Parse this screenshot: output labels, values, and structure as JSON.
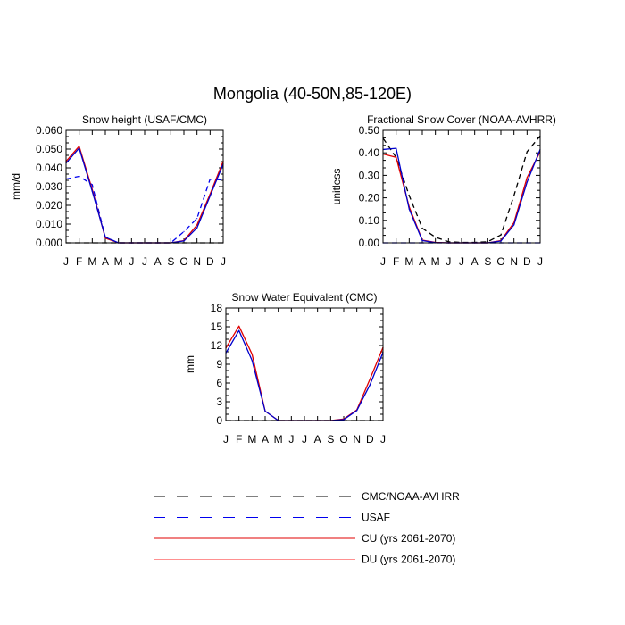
{
  "figure": {
    "title": "Mongolia (40-50N,85-120E)"
  },
  "colors": {
    "cmc_noaa": "#000000",
    "usaf": "#0000ee",
    "cu": "#e00000",
    "du": "#ff9090",
    "model_blue": "#0000cc"
  },
  "legend": [
    {
      "label": "CMC/NOAA-AVHRR",
      "style": "dashed",
      "color": "#000000"
    },
    {
      "label": "USAF",
      "style": "dashed",
      "color": "#0000ee"
    },
    {
      "label": "CU (yrs 2061-2070)",
      "style": "solid",
      "color": "#e00000"
    },
    {
      "label": "DU (yrs 2061-2070)",
      "style": "solid",
      "color": "#ff9090"
    }
  ],
  "chart_data": [
    {
      "type": "line",
      "title": "Snow height (USAF/CMC)",
      "ylabel": "mm/d",
      "xlabel": "",
      "categories": [
        "J",
        "F",
        "M",
        "A",
        "M",
        "J",
        "J",
        "A",
        "S",
        "O",
        "N",
        "D",
        "J"
      ],
      "ylim": [
        0,
        0.06
      ],
      "yticks": [
        "0.000",
        "0.010",
        "0.020",
        "0.030",
        "0.040",
        "0.050",
        "0.060"
      ],
      "series": [
        {
          "name": "CMC/NOAA-AVHRR",
          "style": "dashed",
          "color": "#000000",
          "values": [
            0,
            0,
            0,
            0,
            0,
            0,
            0,
            0,
            0,
            0,
            0,
            0,
            0
          ]
        },
        {
          "name": "USAF",
          "style": "dashed",
          "color": "#0000ee",
          "values": [
            0.034,
            0.0355,
            0.031,
            0.003,
            0,
            0,
            0,
            0,
            0,
            0.006,
            0.013,
            0.034,
            0.0335
          ]
        },
        {
          "name": "CU (yrs 2061-2070)",
          "style": "solid",
          "color": "#e00000",
          "values": [
            0.0435,
            0.0515,
            0.0285,
            0.0025,
            0,
            0,
            0,
            0,
            0,
            0.0012,
            0.0095,
            0.026,
            0.0435
          ]
        },
        {
          "name": "",
          "style": "solid",
          "color": "#0000cc",
          "values": [
            0.0425,
            0.0505,
            0.0275,
            0.003,
            0,
            0,
            0,
            0,
            0,
            0.001,
            0.008,
            0.025,
            0.042
          ]
        }
      ]
    },
    {
      "type": "line",
      "title": "Fractional Snow Cover (NOAA-AVHRR)",
      "ylabel": "unitless",
      "xlabel": "",
      "categories": [
        "J",
        "F",
        "M",
        "A",
        "M",
        "J",
        "J",
        "A",
        "S",
        "O",
        "N",
        "D",
        "J"
      ],
      "ylim": [
        0,
        0.5
      ],
      "yticks": [
        "0.00",
        "0.10",
        "0.20",
        "0.30",
        "0.40",
        "0.50"
      ],
      "series": [
        {
          "name": "CMC/NOAA-AVHRR",
          "style": "dashed",
          "color": "#000000",
          "values": [
            0.465,
            0.38,
            0.21,
            0.065,
            0.025,
            0.005,
            0.002,
            0.002,
            0.005,
            0.035,
            0.21,
            0.405,
            0.475
          ]
        },
        {
          "name": "USAF",
          "style": "dashed",
          "color": "#0000ee",
          "values": [
            0,
            0,
            0,
            0,
            0,
            0,
            0,
            0,
            0,
            0,
            0,
            0,
            0
          ]
        },
        {
          "name": "CU (yrs 2061-2070)",
          "style": "solid",
          "color": "#e00000",
          "values": [
            0.395,
            0.38,
            0.16,
            0.012,
            0.002,
            0,
            0,
            0,
            0,
            0.01,
            0.09,
            0.29,
            0.405
          ]
        },
        {
          "name": "",
          "style": "solid",
          "color": "#0000cc",
          "values": [
            0.415,
            0.42,
            0.15,
            0.01,
            0.001,
            0,
            0,
            0,
            0,
            0.008,
            0.08,
            0.27,
            0.415
          ]
        }
      ]
    },
    {
      "type": "line",
      "title": "Snow Water Equivalent (CMC)",
      "ylabel": "mm",
      "xlabel": "",
      "categories": [
        "J",
        "F",
        "M",
        "A",
        "M",
        "J",
        "J",
        "A",
        "S",
        "O",
        "N",
        "D",
        "J"
      ],
      "ylim": [
        0,
        18
      ],
      "yticks": [
        "0",
        "3",
        "6",
        "9",
        "12",
        "15",
        "18"
      ],
      "series": [
        {
          "name": "CMC/NOAA-AVHRR",
          "style": "dashed",
          "color": "#000000",
          "values": [
            0,
            0,
            0,
            0,
            0,
            0,
            0,
            0,
            0,
            0,
            0,
            0,
            0
          ]
        },
        {
          "name": "CU (yrs 2061-2070)",
          "style": "solid",
          "color": "#e00000",
          "values": [
            11.6,
            15.1,
            10.6,
            1.5,
            0,
            0,
            0,
            0,
            0,
            0.25,
            1.7,
            6.6,
            11.7
          ]
        },
        {
          "name": "",
          "style": "solid",
          "color": "#0000cc",
          "values": [
            10.8,
            14.4,
            9.6,
            1.5,
            0,
            0,
            0,
            0,
            0,
            0.15,
            1.6,
            5.7,
            10.9
          ]
        }
      ]
    }
  ]
}
